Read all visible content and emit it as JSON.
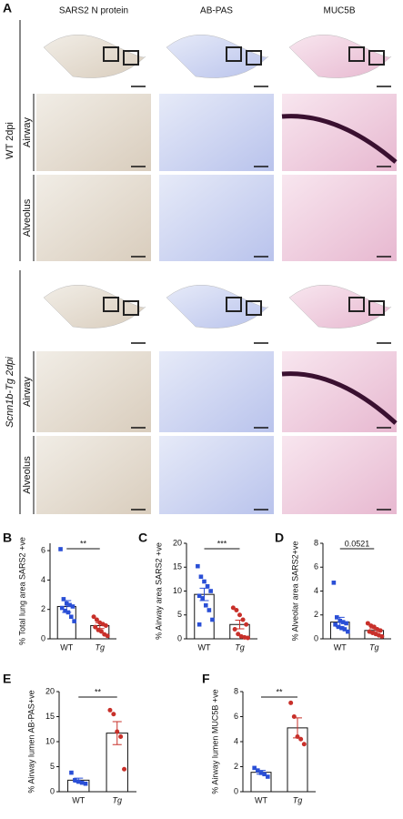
{
  "panel_a": {
    "label": "A",
    "columns": [
      "SARS2 N protein",
      "AB-PAS",
      "MUC5B"
    ],
    "groups": [
      {
        "label": "WT 2dpi",
        "rows": [
          "Airway",
          "Alveolus"
        ]
      },
      {
        "label": "Scnn1b-Tg 2dpi",
        "rows": [
          "Airway",
          "Alveolus"
        ]
      }
    ]
  },
  "chart_data": [
    {
      "type": "bar-dot",
      "label": "B",
      "ylabel": "% Total lung area SARS2 +ve",
      "categories": [
        "WT",
        "Tg"
      ],
      "point_colors": [
        "#2a4fd6",
        "#c8302a"
      ],
      "ylim": [
        0,
        6.5
      ],
      "yticks": [
        0,
        2,
        4,
        6
      ],
      "means": [
        2.2,
        0.9
      ],
      "errors": [
        0.4,
        0.2
      ],
      "points": [
        [
          6.1,
          2.7,
          2.4,
          2.3,
          2.2,
          2.1,
          1.9,
          1.8,
          1.5,
          1.2
        ],
        [
          1.5,
          1.3,
          1.1,
          1.0,
          0.9,
          0.8,
          0.6,
          0.5,
          0.3,
          0.2
        ]
      ],
      "significance": "**"
    },
    {
      "type": "bar-dot",
      "label": "C",
      "ylabel": "% Airway area SARS2 +ve",
      "categories": [
        "WT",
        "Tg"
      ],
      "point_colors": [
        "#2a4fd6",
        "#c8302a"
      ],
      "ylim": [
        0,
        20
      ],
      "yticks": [
        0,
        5,
        10,
        15,
        20
      ],
      "means": [
        9.3,
        3.0
      ],
      "errors": [
        1.3,
        0.9
      ],
      "points": [
        [
          15.2,
          13,
          12,
          11,
          10,
          9,
          8.5,
          7,
          6,
          4,
          3
        ],
        [
          6.5,
          6,
          5,
          4,
          3,
          2,
          1,
          0.5,
          0.3,
          0.2
        ]
      ],
      "significance": "***"
    },
    {
      "type": "bar-dot",
      "label": "D",
      "ylabel": "% Alveolar area SARS2+ve",
      "categories": [
        "WT",
        "Tg"
      ],
      "point_colors": [
        "#2a4fd6",
        "#c8302a"
      ],
      "ylim": [
        0,
        8
      ],
      "yticks": [
        0,
        2,
        4,
        6,
        8
      ],
      "means": [
        1.4,
        0.7
      ],
      "errors": [
        0.4,
        0.15
      ],
      "points": [
        [
          4.7,
          1.8,
          1.5,
          1.4,
          1.3,
          1.2,
          1.0,
          0.9,
          0.8,
          0.6
        ],
        [
          1.3,
          1.1,
          1.0,
          0.8,
          0.7,
          0.6,
          0.5,
          0.4,
          0.3,
          0.2
        ]
      ],
      "significance": "0.0521"
    },
    {
      "type": "bar-dot",
      "label": "E",
      "ylabel": "% Airway lumen AB-PAS+ve",
      "categories": [
        "WT",
        "Tg"
      ],
      "point_colors": [
        "#2a4fd6",
        "#c8302a"
      ],
      "ylim": [
        0,
        20
      ],
      "yticks": [
        0,
        5,
        10,
        15,
        20
      ],
      "means": [
        2.3,
        11.7
      ],
      "errors": [
        0.4,
        2.3
      ],
      "points": [
        [
          3.8,
          2.3,
          2.0,
          1.8,
          1.6
        ],
        [
          16.3,
          15.5,
          12,
          11,
          4.5
        ]
      ],
      "significance": "**"
    },
    {
      "type": "bar-dot",
      "label": "F",
      "ylabel": "% Airway lumen MUC5B +ve",
      "categories": [
        "WT",
        "Tg"
      ],
      "point_colors": [
        "#2a4fd6",
        "#c8302a"
      ],
      "ylim": [
        0,
        8
      ],
      "yticks": [
        0,
        2,
        4,
        6,
        8
      ],
      "means": [
        1.55,
        5.1
      ],
      "errors": [
        0.15,
        0.8
      ],
      "points": [
        [
          1.9,
          1.7,
          1.5,
          1.4,
          1.2
        ],
        [
          7.1,
          6.0,
          4.4,
          4.2,
          3.8
        ]
      ],
      "significance": "**"
    }
  ]
}
